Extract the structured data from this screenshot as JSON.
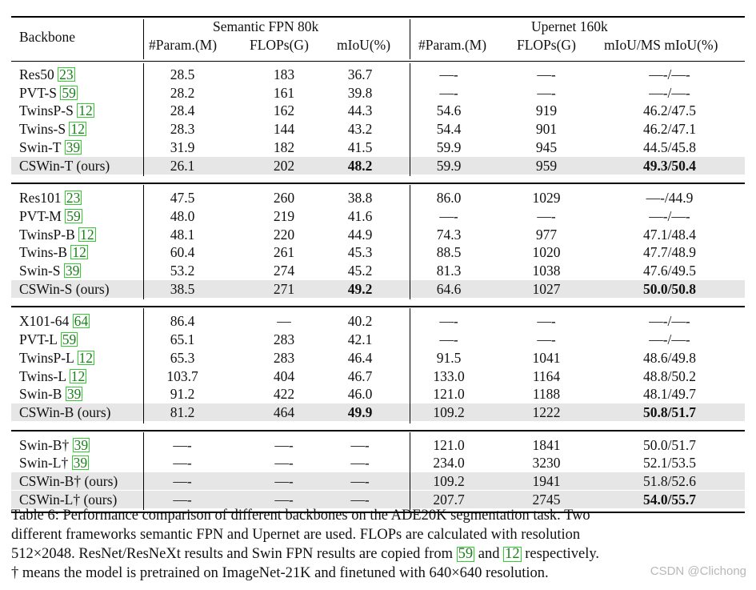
{
  "header": {
    "backbone": "Backbone",
    "group1": "Semantic FPN 80k",
    "group2": "Upernet 160k",
    "sub": [
      "#Param.(M)",
      "FLOPs(G)",
      "mIoU(%)",
      "#Param.(M)",
      "FLOPs(G)",
      "mIoU/MS mIoU(%)"
    ]
  },
  "groups": [
    {
      "rows": [
        {
          "name": "Res50 ",
          "cite": "23",
          "v": [
            "28.5",
            "183",
            "36.7",
            "—-",
            "—-",
            "—-/—-"
          ]
        },
        {
          "name": "PVT-S ",
          "cite": "59",
          "v": [
            "28.2",
            "161",
            "39.8",
            "—-",
            "—-",
            "—-/—-"
          ]
        },
        {
          "name": "TwinsP-S ",
          "cite": "12",
          "v": [
            "28.4",
            "162",
            "44.3",
            "54.6",
            "919",
            "46.2/47.5"
          ]
        },
        {
          "name": "Twins-S ",
          "cite": "12",
          "v": [
            "28.3",
            "144",
            "43.2",
            "54.4",
            "901",
            "46.2/47.1"
          ]
        },
        {
          "name": "Swin-T ",
          "cite": "39",
          "v": [
            "31.9",
            "182",
            "41.5",
            "59.9",
            "945",
            "44.5/45.8"
          ]
        },
        {
          "name": "CSWin-T (ours)",
          "cite": "",
          "hl": true,
          "bold": [
            2,
            5
          ],
          "v": [
            "26.1",
            "202",
            "48.2",
            "59.9",
            "959",
            "49.3/50.4"
          ]
        }
      ]
    },
    {
      "rows": [
        {
          "name": "Res101 ",
          "cite": "23",
          "v": [
            "47.5",
            "260",
            "38.8",
            "86.0",
            "1029",
            "—-/44.9"
          ]
        },
        {
          "name": "PVT-M ",
          "cite": "59",
          "v": [
            "48.0",
            "219",
            "41.6",
            "—-",
            "—-",
            "—-/—-"
          ]
        },
        {
          "name": "TwinsP-B ",
          "cite": "12",
          "v": [
            "48.1",
            "220",
            "44.9",
            "74.3",
            "977",
            "47.1/48.4"
          ]
        },
        {
          "name": "Twins-B ",
          "cite": "12",
          "v": [
            "60.4",
            "261",
            "45.3",
            "88.5",
            "1020",
            "47.7/48.9"
          ]
        },
        {
          "name": "Swin-S ",
          "cite": "39",
          "v": [
            "53.2",
            "274",
            "45.2",
            "81.3",
            "1038",
            "47.6/49.5"
          ]
        },
        {
          "name": "CSWin-S (ours)",
          "cite": "",
          "hl": true,
          "bold": [
            2,
            5
          ],
          "v": [
            "38.5",
            "271",
            "49.2",
            "64.6",
            "1027",
            "50.0/50.8"
          ]
        }
      ]
    },
    {
      "rows": [
        {
          "name": "X101-64 ",
          "cite": "64",
          "v": [
            "86.4",
            "—",
            "40.2",
            "—-",
            "—-",
            "—-/—-"
          ]
        },
        {
          "name": "PVT-L ",
          "cite": "59",
          "v": [
            "65.1",
            "283",
            "42.1",
            "—-",
            "—-",
            "—-/—-"
          ]
        },
        {
          "name": "TwinsP-L ",
          "cite": "12",
          "v": [
            "65.3",
            "283",
            "46.4",
            "91.5",
            "1041",
            "48.6/49.8"
          ]
        },
        {
          "name": "Twins-L ",
          "cite": "12",
          "v": [
            "103.7",
            "404",
            "46.7",
            "133.0",
            "1164",
            "48.8/50.2"
          ]
        },
        {
          "name": "Swin-B ",
          "cite": "39",
          "v": [
            "91.2",
            "422",
            "46.0",
            "121.0",
            "1188",
            "48.1/49.7"
          ]
        },
        {
          "name": "CSWin-B (ours)",
          "cite": "",
          "hl": true,
          "bold": [
            2,
            5
          ],
          "v": [
            "81.2",
            "464",
            "49.9",
            "109.2",
            "1222",
            "50.8/51.7"
          ]
        }
      ]
    },
    {
      "rows": [
        {
          "name": "Swin-B† ",
          "cite": "39",
          "v": [
            "—-",
            "—-",
            "—-",
            "121.0",
            "1841",
            "50.0/51.7"
          ]
        },
        {
          "name": "Swin-L† ",
          "cite": "39",
          "v": [
            "—-",
            "—-",
            "—-",
            "234.0",
            "3230",
            "52.1/53.5"
          ]
        },
        {
          "name": "CSWin-B† (ours)",
          "cite": "",
          "hl": true,
          "bold": [],
          "v": [
            "—-",
            "—-",
            "—-",
            "109.2",
            "1941",
            "51.8/52.6"
          ]
        },
        {
          "name": "CSWin-L† (ours)",
          "cite": "",
          "hl": true,
          "bold": [
            5
          ],
          "v": [
            "—-",
            "—-",
            "—-",
            "207.7",
            "2745",
            "54.0/55.7"
          ]
        }
      ]
    }
  ],
  "caption": {
    "l1": "Table 6: Performance comparison of different backbones on the ADE20K segmentation task. Two",
    "l2": "different frameworks semantic FPN and Upernet are used. FLOPs are calculated with resolution",
    "l3a": "512×2048. ResNet/ResNeXt results and Swin FPN results are copied from ",
    "l3c1": "59",
    "l3b": " and ",
    "l3c2": "12",
    "l3d": " respectively.",
    "l4": "† means the model is pretrained on ImageNet-21K and finetuned with 640×640 resolution."
  },
  "watermark": "CSDN @Clichong"
}
